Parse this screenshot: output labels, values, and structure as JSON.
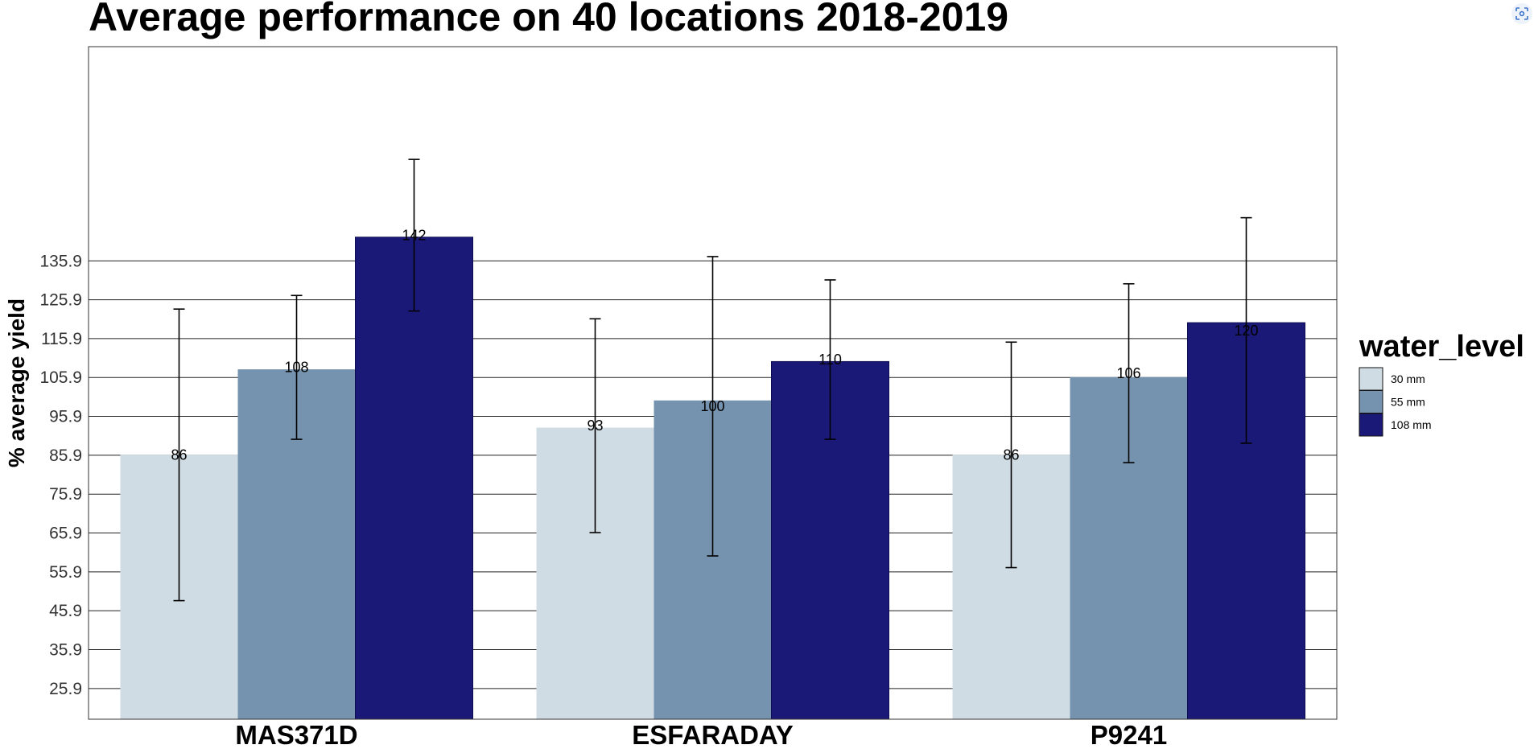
{
  "chart_data": {
    "type": "bar",
    "title": "Average performance on 40 locations 2018-2019",
    "xlabel": "",
    "ylabel": "% average yield",
    "categories": [
      "MAS371D",
      "ESFARADAY",
      "P9241"
    ],
    "series": [
      {
        "name": "30 mm",
        "color": "#d0dce4",
        "values": [
          86,
          93,
          86
        ],
        "labels": [
          "86",
          "93",
          "86"
        ],
        "err_low": [
          48.5,
          66,
          57
        ],
        "err_high": [
          123.5,
          121,
          115
        ]
      },
      {
        "name": "55 mm",
        "color": "#7593ae",
        "values": [
          108,
          100,
          106
        ],
        "labels": [
          "108",
          "100",
          "106"
        ],
        "err_low": [
          90,
          60,
          84
        ],
        "err_high": [
          127,
          137,
          130
        ]
      },
      {
        "name": "108 mm",
        "color": "#1b1978",
        "values": [
          142,
          110,
          120
        ],
        "labels": [
          "142",
          "110",
          "120"
        ],
        "err_low": [
          123,
          90,
          89
        ],
        "err_high": [
          162,
          131,
          147
        ]
      }
    ],
    "ylim": [
      18,
      191
    ],
    "yticks": [
      "25.9",
      "35.9",
      "45.9",
      "55.9",
      "65.9",
      "75.9",
      "85.9",
      "95.9",
      "105.9",
      "115.9",
      "125.9",
      "135.9"
    ],
    "legend_title": "water_level",
    "legend_position": "right",
    "grid": true
  },
  "ui": {
    "scan_icon": "screenshot-scan-icon"
  }
}
